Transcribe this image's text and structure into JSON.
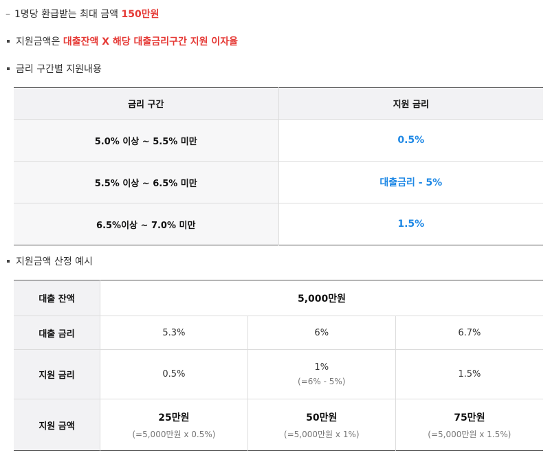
{
  "lines": {
    "l1_text": "1명당 환급받는 최대 금액 ",
    "l1_highlight": "150만원",
    "l2_text": "지원금액은 ",
    "l2_highlight": "대출잔액 X 해당 대출금리구간 지원 이자율",
    "l3_text": "금리 구간별 지원내용",
    "l4_text": "지원금액 산정 예시"
  },
  "table1": {
    "headers": [
      "금리 구간",
      "지원 금리"
    ],
    "rows": [
      {
        "range": "5.0% 이상 ~ 5.5% 미만",
        "rate": "0.5%"
      },
      {
        "range": "5.5% 이상 ~ 6.5% 미만",
        "rate": "대출금리 - 5%"
      },
      {
        "range": "6.5%이상 ~ 7.0% 미만",
        "rate": "1.5%"
      }
    ]
  },
  "table2": {
    "balance_label": "대출 잔액",
    "balance_value": "5,000만원",
    "loan_rate_label": "대출 금리",
    "loan_rates": [
      "5.3%",
      "6%",
      "6.7%"
    ],
    "support_rate_label": "지원 금리",
    "support_rates": [
      {
        "main": "0.5%",
        "sub": ""
      },
      {
        "main": "1%",
        "sub": "(=6% - 5%)"
      },
      {
        "main": "1.5%",
        "sub": ""
      }
    ],
    "support_amount_label": "지원 금액",
    "support_amounts": [
      {
        "main": "25만원",
        "sub": "(=5,000만원 x 0.5%)"
      },
      {
        "main": "50만원",
        "sub": "(=5,000만원 x 1%)"
      },
      {
        "main": "75만원",
        "sub": "(=5,000만원 x 1.5%)"
      }
    ]
  },
  "colors": {
    "highlight": "#e53935",
    "rate": "#1e88e5"
  }
}
